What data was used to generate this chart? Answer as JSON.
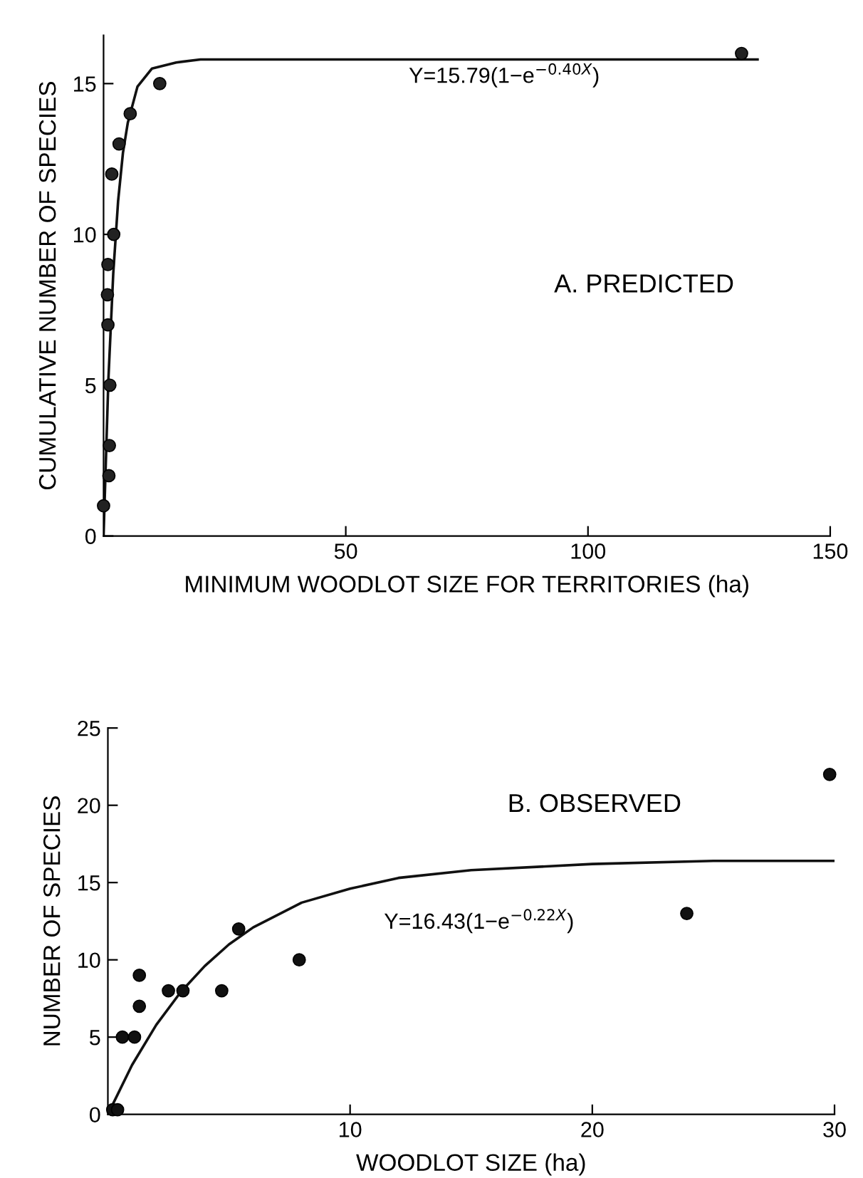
{
  "chart_data": [
    {
      "type": "scatter",
      "xlabel": "MINIMUM WOODLOT SIZE FOR TERRITORIES (ha)",
      "ylabel": "CUMULATIVE NUMBER OF SPECIES",
      "annotations": [
        "Y=15.79(1−e$^{−0.40X}$)",
        "A. PREDICTED"
      ],
      "xlim": [
        0,
        150
      ],
      "ylim": [
        0,
        16.6
      ],
      "xticks": [
        50,
        100,
        150
      ],
      "yticks": [
        0,
        5,
        10,
        15
      ],
      "grid": false,
      "legend": false,
      "marker": "circle",
      "series": [
        {
          "color": "#222222",
          "x": [
            0,
            1.1,
            1.2,
            1.3,
            0.9,
            0.8,
            0.9,
            2.1,
            1.7,
            3.2,
            5.5,
            11.6,
            131.7
          ],
          "values": [
            1,
            2,
            3,
            5,
            7,
            8,
            9,
            10,
            12,
            13,
            14,
            15,
            16
          ]
        },
        {
          "type": "line",
          "color": "#111111",
          "marker": "none",
          "line_style": "solid",
          "x": [
            0,
            1,
            2,
            3,
            4,
            5,
            7,
            10,
            15,
            20,
            135
          ],
          "values": [
            0,
            5.2,
            8.7,
            11.1,
            12.7,
            13.7,
            14.9,
            15.5,
            15.7,
            15.8,
            15.8
          ]
        }
      ]
    },
    {
      "type": "scatter",
      "xlabel": "WOODLOT SIZE (ha)",
      "ylabel": "NUMBER OF SPECIES",
      "annotations": [
        "Y=16.43(1−e$^{−0.22X}$)",
        "B. OBSERVED"
      ],
      "xlim": [
        0,
        30
      ],
      "ylim": [
        0,
        25
      ],
      "xticks": [
        10,
        20,
        30
      ],
      "yticks": [
        0,
        5,
        10,
        15,
        20,
        25
      ],
      "grid": false,
      "legend": false,
      "marker": "circle",
      "series": [
        {
          "color": "#111111",
          "x": [
            0.2,
            0.4,
            0.6,
            1.1,
            1.3,
            1.3,
            2.5,
            3.1,
            4.7,
            5.4,
            7.9,
            23.9,
            29.8
          ],
          "values": [
            0.3,
            0.3,
            5,
            5,
            7,
            9,
            8,
            8,
            8,
            12,
            10,
            13,
            22
          ]
        },
        {
          "type": "line",
          "color": "#111111",
          "marker": "none",
          "line_style": "solid",
          "x": [
            0,
            1,
            2,
            3,
            4,
            5,
            6,
            8,
            10,
            12,
            15,
            20,
            25,
            30
          ],
          "values": [
            0,
            3.2,
            5.8,
            7.9,
            9.6,
            11.0,
            12.1,
            13.7,
            14.6,
            15.3,
            15.8,
            16.2,
            16.4,
            16.4
          ]
        }
      ]
    }
  ]
}
